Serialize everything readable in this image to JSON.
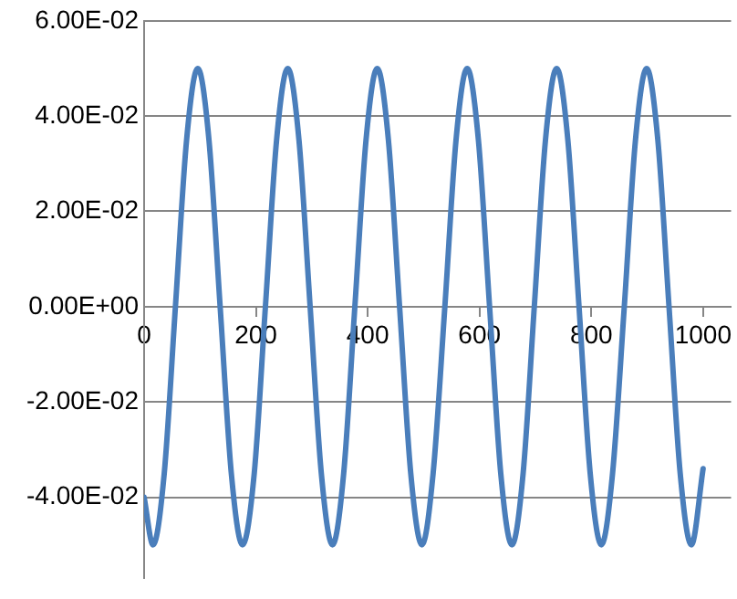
{
  "chart_data": {
    "type": "line",
    "x": [
      0,
      16,
      36,
      56,
      76,
      96,
      116,
      136,
      156,
      176,
      197,
      217,
      237,
      257,
      277,
      297,
      317,
      337,
      357,
      377,
      397,
      417,
      437,
      457,
      477,
      497,
      517,
      538,
      558,
      578,
      598,
      618,
      638,
      658,
      678,
      698,
      718,
      738,
      758,
      778,
      798,
      818,
      838,
      859,
      879,
      899,
      919,
      939,
      959,
      979,
      1000
    ],
    "series": [
      {
        "color": "#4a7ebb",
        "values": [
          -0.04,
          -0.05,
          -0.035,
          0,
          0.035,
          0.05,
          0.035,
          0,
          -0.035,
          -0.05,
          -0.035,
          0,
          0.035,
          0.05,
          0.035,
          0,
          -0.035,
          -0.05,
          -0.035,
          0,
          0.035,
          0.05,
          0.035,
          0,
          -0.035,
          -0.05,
          -0.035,
          0,
          0.035,
          0.05,
          0.035,
          0,
          -0.035,
          -0.05,
          -0.035,
          0,
          0.035,
          0.05,
          0.035,
          0,
          -0.035,
          -0.05,
          -0.035,
          0,
          0.035,
          0.05,
          0.035,
          0,
          -0.035,
          -0.05,
          -0.034
        ]
      }
    ],
    "xlim": [
      0,
      1050
    ],
    "xticks": [
      0,
      200,
      400,
      600,
      800,
      1000
    ],
    "ylim": [
      -0.057,
      0.06
    ],
    "yticks": [
      {
        "value": -0.04,
        "label": "-4.00E-02"
      },
      {
        "value": -0.02,
        "label": "-2.00E-02"
      },
      {
        "value": 0,
        "label": "0.00E+00"
      },
      {
        "value": 0.02,
        "label": "2.00E-02"
      },
      {
        "value": 0.04,
        "label": "4.00E-02"
      },
      {
        "value": 0.06,
        "label": "6.00E-02"
      }
    ],
    "grid": "y",
    "legend": false,
    "marker": "none",
    "line_style": "solid"
  }
}
